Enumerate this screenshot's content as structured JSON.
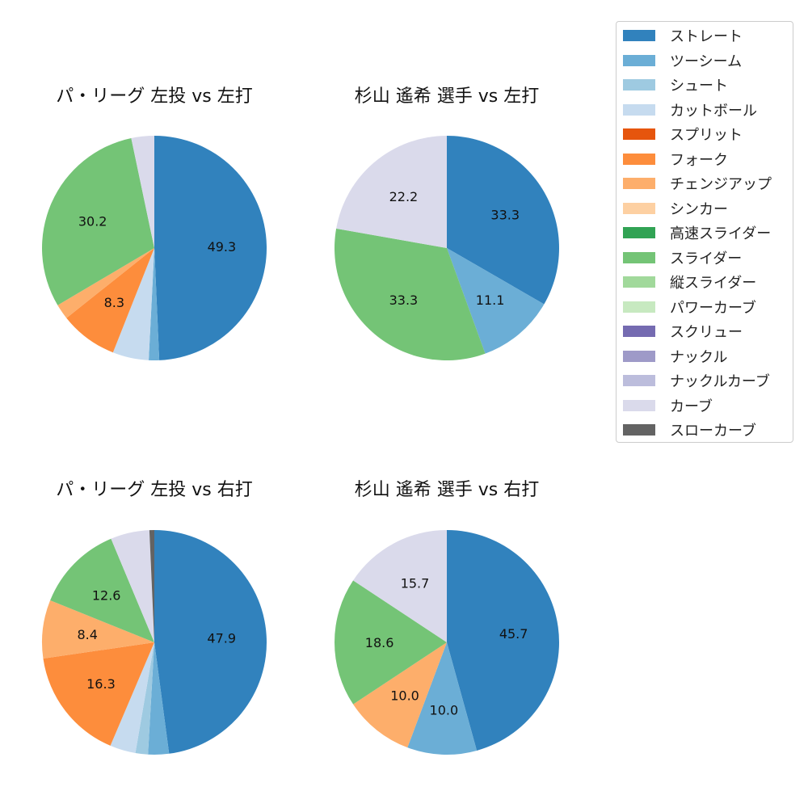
{
  "chart_data": [
    {
      "type": "pie",
      "title": "パ・リーグ 左投 vs 左打",
      "slices": [
        {
          "label": "ストレート",
          "value": 49.3,
          "shown": "49.3"
        },
        {
          "label": "ツーシーム",
          "value": 1.5,
          "shown": ""
        },
        {
          "label": "カットボール",
          "value": 5.2,
          "shown": ""
        },
        {
          "label": "フォーク",
          "value": 8.3,
          "shown": "8.3"
        },
        {
          "label": "チェンジアップ",
          "value": 2.2,
          "shown": ""
        },
        {
          "label": "スライダー",
          "value": 30.2,
          "shown": "30.2"
        },
        {
          "label": "カーブ",
          "value": 3.3,
          "shown": ""
        }
      ]
    },
    {
      "type": "pie",
      "title": "杉山 遙希 選手 vs 左打",
      "slices": [
        {
          "label": "ストレート",
          "value": 33.3,
          "shown": "33.3"
        },
        {
          "label": "ツーシーム",
          "value": 11.1,
          "shown": "11.1"
        },
        {
          "label": "スライダー",
          "value": 33.3,
          "shown": "33.3"
        },
        {
          "label": "カーブ",
          "value": 22.2,
          "shown": "22.2"
        }
      ]
    },
    {
      "type": "pie",
      "title": "パ・リーグ 左投 vs 右打",
      "slices": [
        {
          "label": "ストレート",
          "value": 47.9,
          "shown": "47.9"
        },
        {
          "label": "ツーシーム",
          "value": 3.0,
          "shown": ""
        },
        {
          "label": "シュート",
          "value": 1.8,
          "shown": ""
        },
        {
          "label": "カットボール",
          "value": 3.7,
          "shown": ""
        },
        {
          "label": "フォーク",
          "value": 16.3,
          "shown": "16.3"
        },
        {
          "label": "チェンジアップ",
          "value": 8.4,
          "shown": "8.4"
        },
        {
          "label": "スライダー",
          "value": 12.6,
          "shown": "12.6"
        },
        {
          "label": "カーブ",
          "value": 5.6,
          "shown": ""
        },
        {
          "label": "スローカーブ",
          "value": 0.7,
          "shown": ""
        }
      ]
    },
    {
      "type": "pie",
      "title": "杉山 遙希 選手 vs 右打",
      "slices": [
        {
          "label": "ストレート",
          "value": 45.7,
          "shown": "45.7"
        },
        {
          "label": "ツーシーム",
          "value": 10.0,
          "shown": "10.0"
        },
        {
          "label": "チェンジアップ",
          "value": 10.0,
          "shown": "10.0"
        },
        {
          "label": "スライダー",
          "value": 18.6,
          "shown": "18.6"
        },
        {
          "label": "カーブ",
          "value": 15.7,
          "shown": "15.7"
        }
      ]
    }
  ],
  "legend": [
    {
      "label": "ストレート",
      "color": "#3182bd"
    },
    {
      "label": "ツーシーム",
      "color": "#6baed6"
    },
    {
      "label": "シュート",
      "color": "#9ecae1"
    },
    {
      "label": "カットボール",
      "color": "#c6dbef"
    },
    {
      "label": "スプリット",
      "color": "#e6550d"
    },
    {
      "label": "フォーク",
      "color": "#fd8d3c"
    },
    {
      "label": "チェンジアップ",
      "color": "#fdae6b"
    },
    {
      "label": "シンカー",
      "color": "#fdd0a2"
    },
    {
      "label": "高速スライダー",
      "color": "#31a354"
    },
    {
      "label": "スライダー",
      "color": "#74c476"
    },
    {
      "label": "縦スライダー",
      "color": "#a1d99b"
    },
    {
      "label": "パワーカーブ",
      "color": "#c7e9c0"
    },
    {
      "label": "スクリュー",
      "color": "#756bb1"
    },
    {
      "label": "ナックル",
      "color": "#9e9ac8"
    },
    {
      "label": "ナックルカーブ",
      "color": "#bcbddc"
    },
    {
      "label": "カーブ",
      "color": "#dadaeb"
    },
    {
      "label": "スローカーブ",
      "color": "#636363"
    }
  ]
}
